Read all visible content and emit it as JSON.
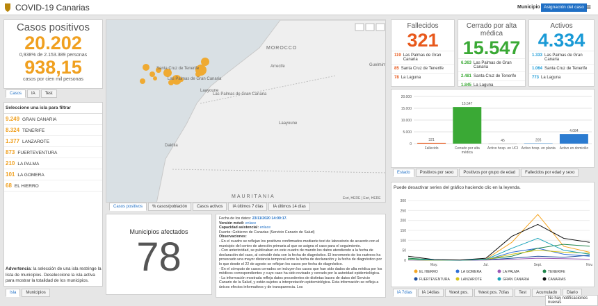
{
  "header": {
    "title": "COVID-19 Canarias",
    "filter_label": "Municipio",
    "button": "Asignación del caso"
  },
  "cases": {
    "title": "Casos positivos",
    "total": "20.202",
    "percent": "0,938% de 2.153.389 personas",
    "rate": "938,15",
    "rate_label": "casos por cien mil personas",
    "tabs": [
      "Casos",
      "IA",
      "Test"
    ]
  },
  "islands": {
    "title": "Seleccione una isla para filtrar",
    "rows": [
      {
        "value": "9.249",
        "name": "GRAN CANARIA"
      },
      {
        "value": "8.324",
        "name": "TENERIFE"
      },
      {
        "value": "1.377",
        "name": "LANZAROTE"
      },
      {
        "value": "873",
        "name": "FUERTEVENTURA"
      },
      {
        "value": "210",
        "name": "LA PALMA"
      },
      {
        "value": "101",
        "name": "LA GOMERA"
      },
      {
        "value": "68",
        "name": "EL HIERRO"
      }
    ],
    "note_label": "Advertencia",
    "note": ": la selección de una isla restringe la lista de municipios. Deseleccione la isla activa para mostrar la totalidad de los municipios.",
    "tabs": [
      "Isla",
      "Municipios"
    ]
  },
  "map": {
    "labels": [
      "MOROCCO",
      "Arrecife",
      "Guelmim",
      "Santa Cruz de Tenerife",
      "Las Palmas de Gran Canaria",
      "Laayoune",
      "Las Palmas de Gran Canaria",
      "Laayoune",
      "Dakhla",
      "MAURITANIA"
    ],
    "attribution": "Esri, HERE | Esri, HERE",
    "tabs": [
      "Casos positivos",
      "% casos/población",
      "Casos activos",
      "IA últimos 7 días",
      "IA últimos 14 días"
    ]
  },
  "municipalities": {
    "title": "Municipios afectados",
    "value": "78"
  },
  "notes": {
    "date_label": "Fecha de los datos:",
    "date": "23/11/2020 14:00:17.",
    "level_label": "Versión móvil:",
    "level": "enlace",
    "care_label": "Capacidad asistencial:",
    "care": "enlace",
    "source": "Fuente: Gobierno de Canarias (Servicio Canario de Salud)",
    "obs_label": "Observaciones:",
    "paragraphs": [
      "- En el cuadro se reflejan los positivos confirmados mediante test de laboratorio de acuerdo con el municipio del centro de atención primaria al que se asigna el caso para el seguimiento.",
      "- Con anterioridad, se publicaban en este cuadro de mando los datos atendiendo a la fecha de declaración del caso, al coincidir ésta con la fecha de diagnóstico. El incremento de los rastreos ha provocado una mayor distancia temporal entre la fecha de declaración y la fecha de diagnóstico por lo que desde el 22 de agosto se reflejan los casos por fecha de diagnóstico.",
      "- En el cómputo de casos cerrados se incluyen los casos que han sido dados de alta médica por los médicos correspondientes y cuyo caso ha sido revisado y cerrado por la autoridad epidemiológica.",
      "- La información mostrada refleja datos procedentes de distintas bases de datos del Servicio Canario de la Salud, y están sujetos a interpretación epidemiológica. Esta información se refleja a únicos efectos informativos y de transparencia. Los"
    ]
  },
  "kpis": [
    {
      "title": "Fallecidos",
      "value": "321",
      "color": "#e8591c",
      "rows": [
        {
          "value": "119",
          "name": "Las Palmas de Gran Canaria"
        },
        {
          "value": "85",
          "name": "Santa Cruz de Tenerife"
        },
        {
          "value": "78",
          "name": "La Laguna"
        }
      ]
    },
    {
      "title": "Cerrado por alta médica",
      "value": "15.547",
      "color": "#3aa935",
      "rows": [
        {
          "value": "6.363",
          "name": "Las Palmas de Gran Canaria"
        },
        {
          "value": "2.481",
          "name": "Santa Cruz de Tenerife"
        },
        {
          "value": "1.845",
          "name": "La Laguna"
        }
      ]
    },
    {
      "title": "Activos",
      "value": "4.334",
      "color": "#1a9ad6",
      "rows": [
        {
          "value": "1.333",
          "name": "Las Palmas de Gran Canaria"
        },
        {
          "value": "1.064",
          "name": "Santa Cruz de Tenerife"
        },
        {
          "value": "773",
          "name": "La Laguna"
        }
      ]
    }
  ],
  "status_chart": {
    "type": "bar",
    "categories": [
      "Fallecido",
      "Cerrado por alta médica",
      "Activo hosp. en UCI",
      "Activo hosp. en planta",
      "Activo en domicilio"
    ],
    "values": [
      321,
      15547,
      45,
      205,
      4084
    ],
    "value_labels": [
      "321",
      "15.547",
      "45",
      "205",
      "4.084"
    ],
    "colors": [
      "#e8591c",
      "#3aa935",
      "#9e9e9e",
      "#6fa8dc",
      "#2b7bd0"
    ],
    "ylim": [
      0,
      20000
    ],
    "yticks": [
      0,
      {
        "value": 5000,
        "label": "5.000"
      },
      {
        "value": 10000,
        "label": "10.000"
      },
      {
        "value": 15000,
        "label": "15.000"
      },
      {
        "value": 20000,
        "label": "20.000"
      }
    ],
    "tabs": [
      "Estado",
      "Positivos por sexo",
      "Positivos por grupo de edad",
      "Fallecidos por edad y sexo"
    ]
  },
  "trend_chart": {
    "type": "line",
    "subtitle": "Puede desactivar series del gráfico haciendo clic en la leyenda.",
    "categories": [
      null,
      "May.",
      null,
      "Jul.",
      null,
      "Sept.",
      null,
      "Nov."
    ],
    "ylim": [
      0,
      300
    ],
    "yticks": [
      0,
      50,
      100,
      150,
      200,
      250,
      300
    ],
    "series": [
      {
        "name": "EL HIERRO",
        "color": "#f5a623",
        "values": [
          3,
          0,
          0,
          5,
          90,
          230,
          70,
          40
        ]
      },
      {
        "name": "LA GOMERA",
        "color": "#2f6fd6",
        "values": [
          2,
          0,
          0,
          2,
          40,
          60,
          30,
          20
        ]
      },
      {
        "name": "LA PALMA",
        "color": "#9b59b6",
        "values": [
          1,
          0,
          0,
          1,
          5,
          10,
          8,
          5
        ]
      },
      {
        "name": "TENERIFE",
        "color": "#1e8449",
        "values": [
          10,
          2,
          0,
          5,
          20,
          60,
          80,
          70
        ]
      },
      {
        "name": "FUERTEVENTURA",
        "color": "#1f4e9c",
        "values": [
          2,
          0,
          0,
          2,
          10,
          20,
          15,
          25
        ]
      },
      {
        "name": "LANZAROTE",
        "color": "#d4c21a",
        "values": [
          2,
          0,
          0,
          3,
          30,
          50,
          40,
          35
        ]
      },
      {
        "name": "GRAN CANARIA",
        "color": "#17a2b8",
        "values": [
          5,
          1,
          0,
          4,
          60,
          110,
          50,
          30
        ]
      },
      {
        "name": "CANARIAS",
        "color": "#111111",
        "values": [
          20,
          3,
          1,
          10,
          120,
          180,
          110,
          90
        ]
      }
    ],
    "tabs": [
      "IA 7días",
      "IA 14días",
      "%test pos.",
      "%test pos. 7días",
      "Test",
      "Acumulado",
      "Diario"
    ]
  },
  "notification": "No hay notificaciones nuevas"
}
